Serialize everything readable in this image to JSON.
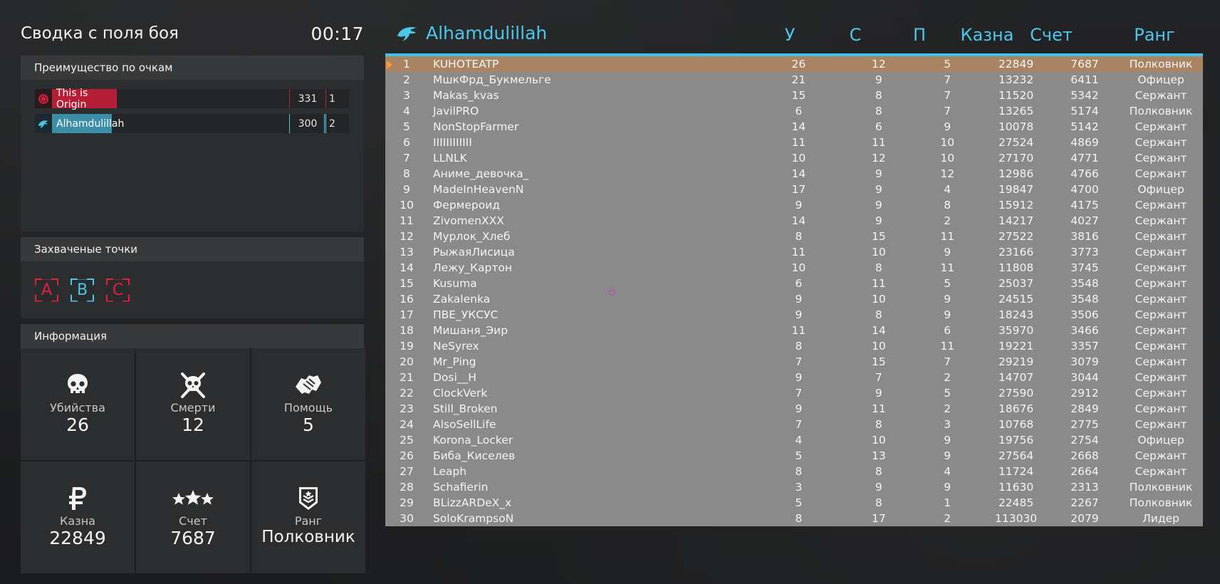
{
  "summary": {
    "title": "Сводка с поля боя",
    "timer": "00:17"
  },
  "advantage": {
    "header": "Преимущество по очкам",
    "teams": [
      {
        "name": "This is Origin",
        "points": "331",
        "place": "1",
        "color": "#c0203a",
        "fill_fraction": 0.28
      },
      {
        "name": "Alhamdulillah",
        "points": "300",
        "place": "2",
        "color": "#3a8ea6",
        "fill_fraction": 0.25
      }
    ]
  },
  "captured": {
    "header": "Захваченые точки",
    "points": [
      {
        "letter": "A",
        "color": "#e0203c"
      },
      {
        "letter": "B",
        "color": "#4cc7ea"
      },
      {
        "letter": "C",
        "color": "#e0203c"
      }
    ]
  },
  "info": {
    "header": "Информация",
    "stats": [
      {
        "label": "Убийства",
        "value": "26",
        "icon": "skull-icon"
      },
      {
        "label": "Смерти",
        "value": "12",
        "icon": "skull-crossbones-icon"
      },
      {
        "label": "Помощь",
        "value": "5",
        "icon": "handshake-icon"
      },
      {
        "label": "Казна",
        "value": "22849",
        "icon": "ruble-icon"
      },
      {
        "label": "Счет",
        "value": "7687",
        "icon": "stars-icon"
      },
      {
        "label": "Ранг",
        "value": "Полковник",
        "icon": "rank-badge-icon"
      }
    ]
  },
  "scoreboard": {
    "team_name": "Alhamdulillah",
    "accent": "#4cc7ea",
    "columns": {
      "kills": "У",
      "deaths": "С",
      "assists": "П",
      "money": "Казна",
      "score": "Счет",
      "rank": "Ранг"
    },
    "rows": [
      [
        "1",
        "KUHOTEATP",
        "26",
        "12",
        "5",
        "22849",
        "7687",
        "Полковник"
      ],
      [
        "2",
        "МшкФрд_Букмельге",
        "21",
        "9",
        "7",
        "13232",
        "6411",
        "Офицер"
      ],
      [
        "3",
        "Makas_kvas",
        "15",
        "8",
        "7",
        "11520",
        "5342",
        "Сержант"
      ],
      [
        "4",
        "JavilPRO",
        "6",
        "8",
        "7",
        "13265",
        "5174",
        "Полковник"
      ],
      [
        "5",
        "NonStopFarmer",
        "14",
        "6",
        "9",
        "10078",
        "5142",
        "Сержант"
      ],
      [
        "6",
        "IIIIIIIIIIII",
        "11",
        "11",
        "10",
        "27524",
        "4869",
        "Сержант"
      ],
      [
        "7",
        "LLNLK",
        "10",
        "12",
        "10",
        "27170",
        "4771",
        "Сержант"
      ],
      [
        "8",
        "Аниме_девочка_",
        "14",
        "9",
        "12",
        "12986",
        "4766",
        "Сержант"
      ],
      [
        "9",
        "MadeInHeavenN",
        "17",
        "9",
        "4",
        "19847",
        "4700",
        "Офицер"
      ],
      [
        "10",
        "Фермероид",
        "9",
        "9",
        "8",
        "15912",
        "4175",
        "Сержант"
      ],
      [
        "11",
        "ZivomenXXX",
        "14",
        "9",
        "2",
        "14217",
        "4027",
        "Сержант"
      ],
      [
        "12",
        "Мурлок_Хлеб",
        "8",
        "15",
        "11",
        "27522",
        "3816",
        "Сержант"
      ],
      [
        "13",
        "РыжаяЛисица",
        "11",
        "10",
        "9",
        "23166",
        "3773",
        "Сержант"
      ],
      [
        "14",
        "Лежу_Картон",
        "10",
        "8",
        "11",
        "11808",
        "3745",
        "Сержант"
      ],
      [
        "15",
        "Kusuma",
        "6",
        "11",
        "5",
        "25037",
        "3548",
        "Сержант"
      ],
      [
        "16",
        "Zakalenka",
        "9",
        "10",
        "9",
        "24515",
        "3548",
        "Сержант"
      ],
      [
        "17",
        "ПВЕ_УКСУС",
        "9",
        "8",
        "9",
        "18243",
        "3506",
        "Сержант"
      ],
      [
        "18",
        "Мишаня_Эир",
        "11",
        "14",
        "6",
        "35970",
        "3466",
        "Сержант"
      ],
      [
        "19",
        "NeSyrex",
        "8",
        "10",
        "11",
        "19221",
        "3357",
        "Сержант"
      ],
      [
        "20",
        "Mr_Ping",
        "7",
        "15",
        "7",
        "29219",
        "3079",
        "Сержант"
      ],
      [
        "21",
        "Dosi__H",
        "9",
        "7",
        "2",
        "14707",
        "3044",
        "Сержант"
      ],
      [
        "22",
        "ClockVerk",
        "7",
        "9",
        "5",
        "27590",
        "2912",
        "Сержант"
      ],
      [
        "23",
        "Still_Broken",
        "9",
        "11",
        "2",
        "18676",
        "2849",
        "Сержант"
      ],
      [
        "24",
        "AlsoSellLife",
        "7",
        "8",
        "3",
        "10768",
        "2775",
        "Сержант"
      ],
      [
        "25",
        "Korona_Locker",
        "4",
        "10",
        "9",
        "19756",
        "2754",
        "Офицер"
      ],
      [
        "26",
        "Биба_Киселев",
        "5",
        "13",
        "9",
        "27564",
        "2668",
        "Сержант"
      ],
      [
        "27",
        "Leaph",
        "8",
        "8",
        "4",
        "11724",
        "2664",
        "Сержант"
      ],
      [
        "28",
        "Schafierin",
        "3",
        "9",
        "9",
        "11630",
        "2313",
        "Полковник"
      ],
      [
        "29",
        "BLizzARDeX_x",
        "5",
        "8",
        "1",
        "22485",
        "2267",
        "Полковник"
      ],
      [
        "30",
        "SoloKrampsoN",
        "8",
        "17",
        "2",
        "113030",
        "2079",
        "Лидер"
      ]
    ]
  }
}
